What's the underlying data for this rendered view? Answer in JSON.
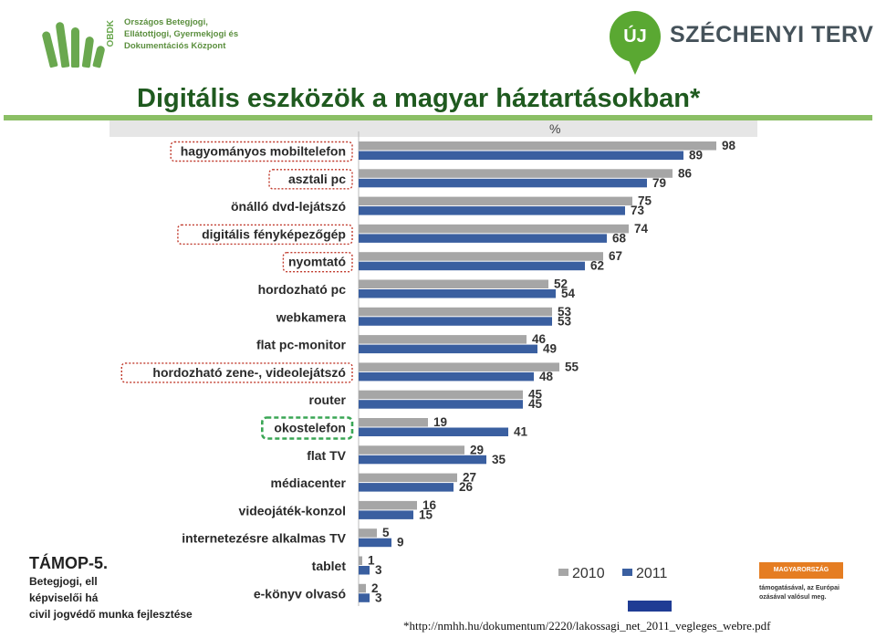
{
  "header": {
    "left_logo": {
      "acronym": "OBDK",
      "lines": [
        "Országos Betegjogi,",
        "Ellátottjogi, Gyermekjogi és",
        "Dokumentációs Központ"
      ]
    },
    "right_logo": {
      "bubble": "ÚJ",
      "text": "SZÉCHENYI TERV"
    }
  },
  "title": "Digitális eszközök a magyar háztartásokban*",
  "chart_data": {
    "type": "bar",
    "orientation": "horizontal",
    "unit_label": "%",
    "categories": [
      "hagyományos mobiltelefon",
      "asztali pc",
      "önálló dvd-lejátszó",
      "digitális fényképezőgép",
      "nyomtató",
      "hordozható pc",
      "webkamera",
      "flat pc-monitor",
      "hordozható zene-, videolejátszó",
      "router",
      "okostelefon",
      "flat TV",
      "médiacenter",
      "videojáték-konzol",
      "internetezésre alkalmas TV",
      "tablet",
      "e-könyv olvasó"
    ],
    "series": [
      {
        "name": "2010",
        "color": "#a6a6a6",
        "values": [
          98,
          86,
          75,
          74,
          67,
          52,
          53,
          46,
          55,
          45,
          19,
          29,
          27,
          16,
          5,
          1,
          2
        ]
      },
      {
        "name": "2011",
        "color": "#3a5fa0",
        "values": [
          89,
          79,
          73,
          68,
          62,
          54,
          53,
          49,
          48,
          45,
          41,
          35,
          26,
          15,
          9,
          3,
          3
        ]
      }
    ],
    "highlight_red": [
      "hagyományos mobiltelefon",
      "asztali pc",
      "digitális fényképezőgép",
      "nyomtató",
      "hordozható zene-, videolejátszó"
    ],
    "highlight_green": [
      "okostelefon"
    ],
    "legend_position": "bottom-right",
    "xlim": [
      0,
      100
    ],
    "grid": false
  },
  "footer": {
    "left_big": "TÁMOP-5.",
    "left_lines": [
      "Betegjogi, ell",
      "képviselői há",
      "civil jogvédő munka fejlesztése"
    ],
    "eu_badge": "MAGYARORSZÁG MEGÚJUL",
    "eu_text": [
      "támogatásával, az Európai",
      "ozásával valósul meg."
    ],
    "source": "*http://nmhh.hu/dokumentum/2220/lakossagi_net_2011_vegleges_webre.pdf"
  }
}
